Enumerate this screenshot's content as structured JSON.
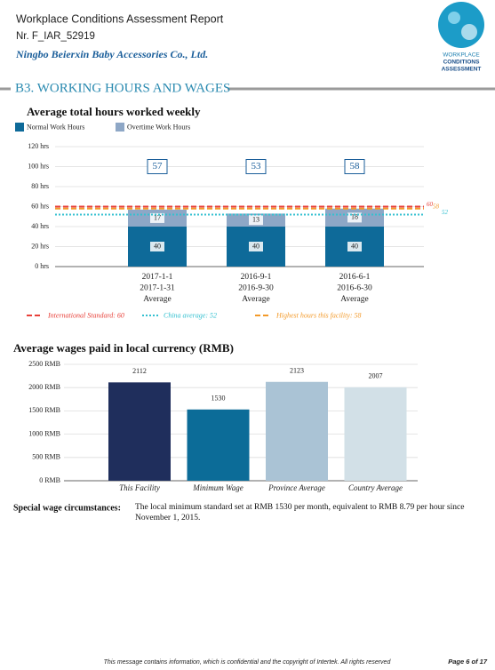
{
  "header": {
    "title": "Workplace Conditions Assessment Report",
    "number": "Nr. F_IAR_52919",
    "company": "Ningbo Beierxin Baby Accessories Co., Ltd.",
    "logo": [
      "WORKPLACE",
      "CONDITIONS",
      "ASSESSMENT"
    ]
  },
  "section_title": "B3. WORKING HOURS AND WAGES",
  "chart_data": [
    {
      "type": "stacked_bar",
      "title": "Average total hours worked  weekly",
      "categories": [
        [
          "2017-1-1",
          "2017-1-31",
          "Average"
        ],
        [
          "2016-9-1",
          "2016-9-30",
          "Average"
        ],
        [
          "2016-6-1",
          "2016-6-30",
          "Average"
        ]
      ],
      "series": [
        {
          "name": "Normal Work Hours",
          "color": "#0e6a99",
          "values": [
            40,
            40,
            40
          ]
        },
        {
          "name": "Overtime Work Hours",
          "color": "#8ea7c6",
          "values": [
            17,
            13,
            18
          ]
        }
      ],
      "totals": [
        57,
        53,
        58
      ],
      "reference_lines": [
        {
          "name": "International Standard: 60",
          "value": 60,
          "color": "#e8413a",
          "style": "dashed"
        },
        {
          "name": "China average: 52",
          "value": 52,
          "color": "#33c0d0",
          "style": "dotted"
        },
        {
          "name": "Highest hours this facility: 58",
          "value": 58,
          "color": "#f39a2a",
          "style": "dashed"
        }
      ],
      "ylim": [
        0,
        120
      ],
      "yticks": [
        {
          "value": 0,
          "label": "0 hrs"
        },
        {
          "value": 20,
          "label": "20 hrs"
        },
        {
          "value": 40,
          "label": "40 hrs"
        },
        {
          "value": 60,
          "label": "60 hrs"
        },
        {
          "value": 80,
          "label": "80 hrs"
        },
        {
          "value": 100,
          "label": "100 hrs"
        },
        {
          "value": 120,
          "label": "120 hrs"
        }
      ],
      "grid": true,
      "legend": "top-left"
    },
    {
      "type": "bar",
      "title": "Average wages paid in local currency (RMB)",
      "categories": [
        "This Facility",
        "Minimum Wage",
        "Province Average",
        "Country Average"
      ],
      "values": [
        2112,
        1530,
        2123,
        2007
      ],
      "colors": [
        "#1f2e5c",
        "#0c6c98",
        "#aac3d5",
        "#d2e0e7"
      ],
      "ylim": [
        0,
        2500
      ],
      "yticks": [
        {
          "value": 0,
          "label": "0 RMB"
        },
        {
          "value": 500,
          "label": "500 RMB"
        },
        {
          "value": 1000,
          "label": "1000 RMB"
        },
        {
          "value": 1500,
          "label": "1500 RMB"
        },
        {
          "value": 2000,
          "label": "2000 RMB"
        },
        {
          "value": 2500,
          "label": "2500 RMB"
        }
      ],
      "grid": true
    }
  ],
  "special": {
    "label": "Special wage circumstances:",
    "text": "The local minimum standard set at RMB 1530 per month, equivalent to RMB 8.79 per hour since November 1, 2015."
  },
  "footer": {
    "notice": "This message contains information, which is confidential and the copyright of Intertek. All rights reserved",
    "page": "Page 6 of 17"
  }
}
